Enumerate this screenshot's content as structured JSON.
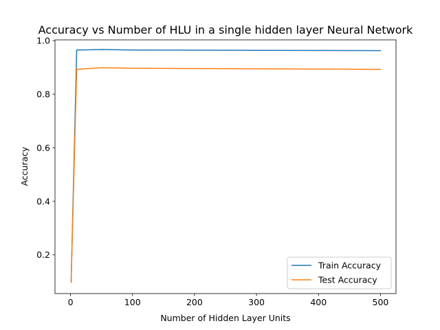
{
  "colors": {
    "train": "#1f77b4",
    "test": "#ff7f0e",
    "axes": "#000000",
    "background": "#ffffff",
    "legend_border": "#cccccc"
  },
  "chart_data": {
    "type": "line",
    "title": "Accuracy vs Number of HLU in a single hidden layer Neural Network",
    "xlabel": "Number of Hidden Layer Units",
    "ylabel": "Accuracy",
    "xlim": [
      -25,
      525
    ],
    "ylim": [
      0.0555,
      1.003
    ],
    "x_ticks": [
      0,
      100,
      200,
      300,
      400,
      500
    ],
    "y_ticks": [
      0.2,
      0.4,
      0.6,
      0.8,
      1.0
    ],
    "x_tick_labels": [
      "0",
      "100",
      "200",
      "300",
      "400",
      "500"
    ],
    "y_tick_labels": [
      "0.2",
      "0.4",
      "0.6",
      "0.8",
      "1.0"
    ],
    "grid": false,
    "legend_position": "lower-right",
    "x": [
      1,
      10,
      50,
      100,
      500
    ],
    "series": [
      {
        "name": "Train Accuracy",
        "color_key": "train",
        "values": [
          0.098,
          0.965,
          0.967,
          0.965,
          0.963
        ]
      },
      {
        "name": "Test Accuracy",
        "color_key": "test",
        "values": [
          0.098,
          0.893,
          0.899,
          0.897,
          0.893
        ]
      }
    ]
  }
}
